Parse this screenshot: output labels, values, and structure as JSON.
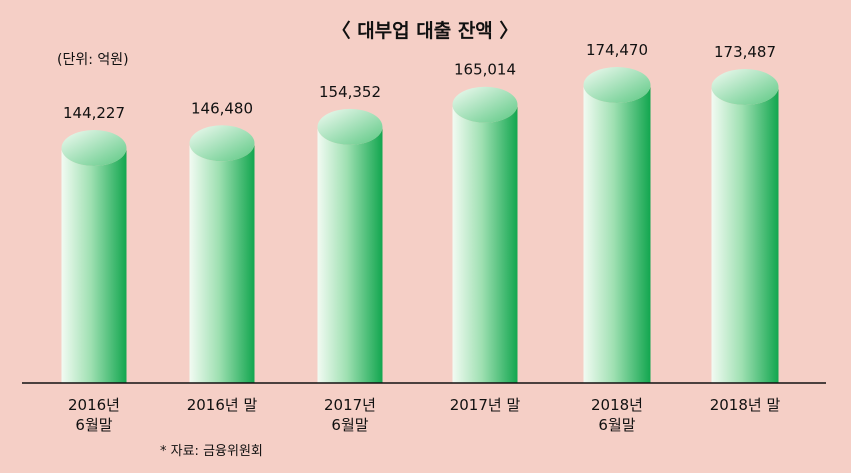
{
  "chart_data": {
    "type": "bar",
    "title": "〈 대부업 대출 잔액 〉",
    "unit_label": "(단위: 억원)",
    "source": "* 자료: 금융위원회",
    "categories": [
      [
        "2016년",
        "6월말"
      ],
      [
        "2016년 말"
      ],
      [
        "2017년",
        "6월말"
      ],
      [
        "2017년 말"
      ],
      [
        "2018년",
        "6월말"
      ],
      [
        "2018년 말"
      ]
    ],
    "values": [
      144227,
      146480,
      154352,
      165014,
      174470,
      173487
    ],
    "value_labels": [
      "144,227",
      "146,480",
      "154,352",
      "165,014",
      "174,470",
      "173,487"
    ],
    "ylim": [
      0,
      180000
    ],
    "grid": false,
    "legend": "none",
    "colors": {
      "background": "#f5cfc6",
      "bar_light": "#f2fbf3",
      "bar_mid": "#9fe0b2",
      "bar_dark": "#12a64f",
      "top_light": "#f2fbf3",
      "top_dark": "#5cc883"
    }
  }
}
